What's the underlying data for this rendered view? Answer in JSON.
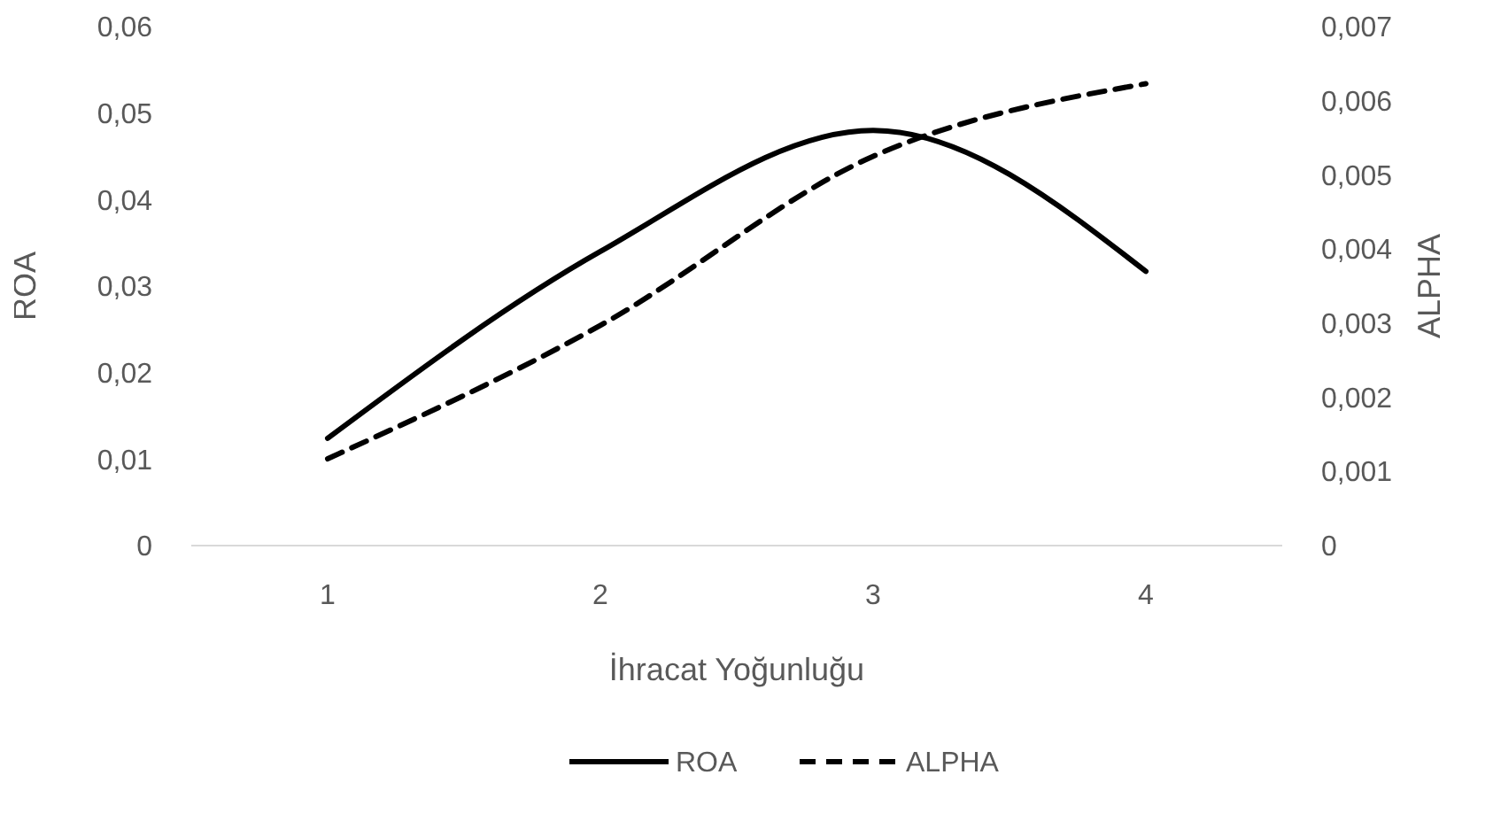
{
  "chart_data": {
    "type": "line",
    "xlabel": "İhracat Yoğunluğu",
    "ylabel": "ROA",
    "y2label": "ALPHA",
    "categories": [
      "1",
      "2",
      "3",
      "4"
    ],
    "series": [
      {
        "name": "ROA",
        "color": "#000000",
        "values": [
          0.0124,
          0.034,
          0.048,
          0.0317
        ],
        "line_style": "solid"
      },
      {
        "name": "ALPHA",
        "color": "#000000",
        "values": [
          0.00117,
          0.00297,
          0.00525,
          0.00623
        ],
        "axis": "y2",
        "line_style": "dashed"
      }
    ],
    "ylim": [
      0,
      0.06
    ],
    "yticks": [
      0,
      {
        "value": 0.01,
        "label": "0,01"
      },
      {
        "value": 0.02,
        "label": "0,02"
      },
      {
        "value": 0.03,
        "label": "0,03"
      },
      {
        "value": 0.04,
        "label": "0,04"
      },
      {
        "value": 0.05,
        "label": "0,05"
      },
      {
        "value": 0.06,
        "label": "0,06"
      }
    ],
    "y2lim": [
      0,
      0.007
    ],
    "y2ticks": [
      0,
      {
        "value": 0.001,
        "label": "0,001"
      },
      {
        "value": 0.002,
        "label": "0,002"
      },
      {
        "value": 0.003,
        "label": "0,003"
      },
      {
        "value": 0.004,
        "label": "0,004"
      },
      {
        "value": 0.005,
        "label": "0,005"
      },
      {
        "value": 0.006,
        "label": "0,006"
      },
      {
        "value": 0.007,
        "label": "0,007"
      }
    ],
    "grid": false,
    "legend": "bottom"
  }
}
